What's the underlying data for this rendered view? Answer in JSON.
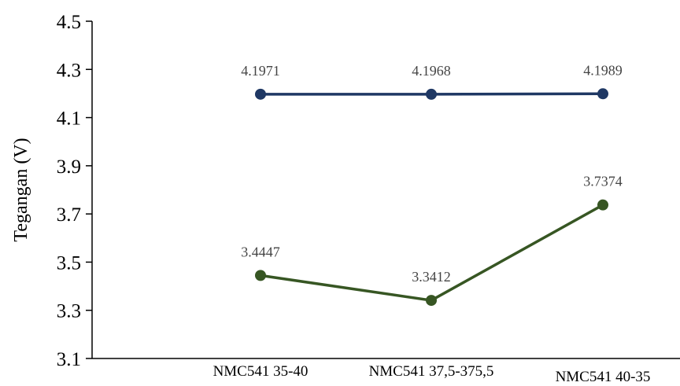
{
  "chart_data": {
    "type": "line",
    "categories": [
      "NMC541 35-40",
      "NMC541 37,5-375,5",
      "NMC541 40-35"
    ],
    "series": [
      {
        "values": [
          4.1971,
          4.1968,
          4.1989
        ],
        "labels": [
          "4.1971",
          "4.1968",
          "4.1989"
        ],
        "color": "#1f3864"
      },
      {
        "values": [
          3.4447,
          3.3412,
          3.7374
        ],
        "labels": [
          "3.4447",
          "3.3412",
          "3.7374"
        ],
        "color": "#375623"
      }
    ],
    "ylabel": "Tegangan (V)",
    "xlabel": "",
    "ylim": [
      3.1,
      4.5
    ],
    "yticks": [
      "3.1",
      "3.3",
      "3.5",
      "3.7",
      "3.9",
      "4.1",
      "4.3",
      "4.5"
    ],
    "grid": false,
    "legend": "none"
  }
}
